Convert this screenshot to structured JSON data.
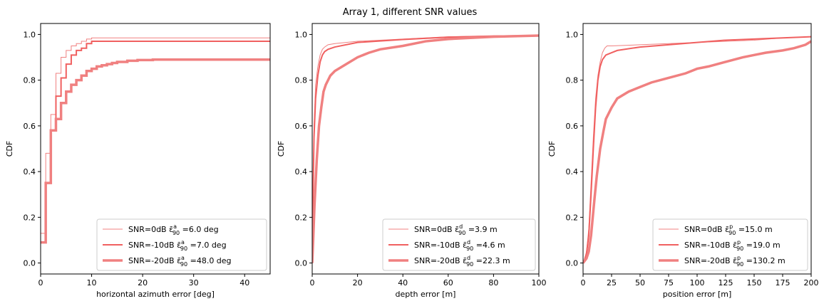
{
  "figure_title": "Array 1, different SNR values",
  "colors": {
    "line": "#f08080",
    "line_mid": "#f06060",
    "axis": "#000000"
  },
  "chart_data": [
    {
      "type": "line",
      "title": "",
      "xlabel": "horizontal azimuth error [deg]",
      "ylabel": "CDF",
      "xlim": [
        0,
        45
      ],
      "ylim": [
        0,
        1
      ],
      "xticks": [
        0,
        10,
        20,
        30,
        40
      ],
      "xtick_labels": [
        "0",
        "10",
        "20",
        "30",
        "40"
      ],
      "yticks": [
        0.0,
        0.2,
        0.4,
        0.6,
        0.8,
        1.0
      ],
      "ytick_labels": [
        "0.0",
        "0.2",
        "0.4",
        "0.6",
        "0.8",
        "1.0"
      ],
      "legend_position": "lower-right",
      "grid": false,
      "step": true,
      "series": [
        {
          "name": "SNR=0dB ε̄ₐ₉₀ =6.0 deg",
          "legend": {
            "pre": "SNR=0dB ",
            "sup": "a",
            "post": " =6.0 deg"
          },
          "width": 1,
          "x": [
            0,
            1,
            2,
            3,
            4,
            5,
            6,
            7,
            8,
            9,
            10,
            45
          ],
          "y": [
            0.13,
            0.48,
            0.65,
            0.83,
            0.9,
            0.93,
            0.95,
            0.96,
            0.97,
            0.98,
            0.985,
            0.985
          ]
        },
        {
          "name": "SNR=-10dB ε̄ₐ₉₀ =7.0 deg",
          "legend": {
            "pre": "SNR=-10dB ",
            "sup": "a",
            "post": " =7.0 deg"
          },
          "width": 2,
          "x": [
            0,
            1,
            2,
            3,
            4,
            5,
            6,
            7,
            8,
            9,
            10,
            45
          ],
          "y": [
            0.09,
            0.35,
            0.58,
            0.73,
            0.81,
            0.87,
            0.91,
            0.93,
            0.94,
            0.96,
            0.97,
            0.97
          ]
        },
        {
          "name": "SNR=-20dB ε̄ₐ₉₀ =48.0 deg",
          "legend": {
            "pre": "SNR=-20dB ",
            "sup": "a",
            "post": " =48.0 deg"
          },
          "width": 3.5,
          "x": [
            0,
            1,
            2,
            3,
            4,
            5,
            6,
            7,
            8,
            9,
            10,
            11,
            12,
            13,
            14,
            15,
            17,
            19,
            22,
            45
          ],
          "y": [
            0.09,
            0.35,
            0.58,
            0.63,
            0.7,
            0.75,
            0.78,
            0.8,
            0.82,
            0.84,
            0.85,
            0.86,
            0.865,
            0.87,
            0.875,
            0.88,
            0.885,
            0.888,
            0.89,
            0.895
          ]
        }
      ]
    },
    {
      "type": "line",
      "title": "",
      "xlabel": "depth error [m]",
      "ylabel": "CDF",
      "xlim": [
        0,
        100
      ],
      "ylim": [
        0,
        1
      ],
      "xticks": [
        0,
        20,
        40,
        60,
        80,
        100
      ],
      "xtick_labels": [
        "0",
        "20",
        "40",
        "60",
        "80",
        "100"
      ],
      "yticks": [
        0.0,
        0.2,
        0.4,
        0.6,
        0.8,
        1.0
      ],
      "ytick_labels": [
        "0.0",
        "0.2",
        "0.4",
        "0.6",
        "0.8",
        "1.0"
      ],
      "legend_position": "lower-right",
      "grid": false,
      "step": false,
      "series": [
        {
          "name": "SNR=0dB ε̄ₐ₉₀ =3.9 m",
          "legend": {
            "pre": "SNR=0dB ",
            "sup": "d",
            "post": " =3.9 m"
          },
          "width": 1,
          "x": [
            0,
            0.3,
            0.8,
            1.5,
            2.5,
            3.5,
            4.5,
            5.5,
            7,
            10,
            20,
            40,
            60,
            80,
            100
          ],
          "y": [
            0.0,
            0.3,
            0.6,
            0.78,
            0.86,
            0.91,
            0.935,
            0.945,
            0.955,
            0.96,
            0.97,
            0.98,
            0.99,
            0.993,
            0.995
          ]
        },
        {
          "name": "SNR=-10dB ε̄ₐ₉₀ =4.6 m",
          "legend": {
            "pre": "SNR=-10dB ",
            "sup": "d",
            "post": " =4.6 m"
          },
          "width": 2,
          "x": [
            0,
            0.3,
            0.8,
            1.5,
            2.5,
            3.5,
            4.5,
            5.5,
            7,
            10,
            20,
            40,
            60,
            80,
            100
          ],
          "y": [
            0.0,
            0.25,
            0.55,
            0.72,
            0.82,
            0.88,
            0.91,
            0.925,
            0.935,
            0.945,
            0.965,
            0.978,
            0.988,
            0.993,
            0.995
          ]
        },
        {
          "name": "SNR=-20dB ε̄ₐ₉₀ =22.3 m",
          "legend": {
            "pre": "SNR=-20dB ",
            "sup": "d",
            "post": " =22.3 m"
          },
          "width": 3.5,
          "x": [
            0,
            0.5,
            1,
            2,
            3,
            4,
            5,
            6,
            8,
            10,
            15,
            20,
            25,
            30,
            40,
            50,
            60,
            80,
            100
          ],
          "y": [
            0.0,
            0.12,
            0.25,
            0.45,
            0.6,
            0.68,
            0.75,
            0.78,
            0.82,
            0.84,
            0.87,
            0.9,
            0.92,
            0.935,
            0.95,
            0.97,
            0.98,
            0.99,
            0.995
          ]
        }
      ]
    },
    {
      "type": "line",
      "title": "",
      "xlabel": "position error [m]",
      "ylabel": "CDF",
      "xlim": [
        0,
        200
      ],
      "ylim": [
        0,
        1
      ],
      "xticks": [
        0,
        25,
        50,
        75,
        100,
        125,
        150,
        175,
        200
      ],
      "xtick_labels": [
        "0",
        "25",
        "50",
        "75",
        "100",
        "125",
        "150",
        "175",
        "200"
      ],
      "yticks": [
        0.0,
        0.2,
        0.4,
        0.6,
        0.8,
        1.0
      ],
      "ytick_labels": [
        "0.0",
        "0.2",
        "0.4",
        "0.6",
        "0.8",
        "1.0"
      ],
      "legend_position": "lower-right",
      "grid": false,
      "step": false,
      "series": [
        {
          "name": "SNR=0dB ε̄ₚ₉₀ =15.0 m",
          "legend": {
            "pre": "SNR=0dB ",
            "sup": "p",
            "post": " =15.0 m"
          },
          "width": 1,
          "x": [
            0,
            1,
            3,
            5,
            7,
            9,
            11,
            13,
            15,
            17,
            19,
            21,
            25,
            50,
            75,
            100,
            125,
            150,
            175,
            200
          ],
          "y": [
            0.0,
            0.01,
            0.05,
            0.15,
            0.35,
            0.55,
            0.72,
            0.82,
            0.88,
            0.92,
            0.94,
            0.95,
            0.95,
            0.955,
            0.96,
            0.965,
            0.97,
            0.975,
            0.985,
            0.99
          ]
        },
        {
          "name": "SNR=-10dB ε̄ₚ₉₀ =19.0 m",
          "legend": {
            "pre": "SNR=-10dB ",
            "sup": "p",
            "post": " =19.0 m"
          },
          "width": 2,
          "x": [
            0,
            1,
            3,
            5,
            7,
            9,
            11,
            13,
            15,
            17,
            20,
            25,
            30,
            50,
            75,
            100,
            125,
            150,
            175,
            200
          ],
          "y": [
            0.0,
            0.01,
            0.04,
            0.12,
            0.3,
            0.5,
            0.68,
            0.8,
            0.86,
            0.89,
            0.91,
            0.92,
            0.93,
            0.945,
            0.955,
            0.965,
            0.975,
            0.98,
            0.985,
            0.99
          ]
        },
        {
          "name": "SNR=-20dB ε̄ₚ₉₀ =130.2 m",
          "legend": {
            "pre": "SNR=-20dB ",
            "sup": "p",
            "post": " =130.2 m"
          },
          "width": 3.5,
          "x": [
            0,
            3,
            5,
            7,
            10,
            12,
            15,
            18,
            20,
            25,
            30,
            40,
            50,
            60,
            75,
            90,
            100,
            110,
            125,
            140,
            150,
            160,
            175,
            185,
            195,
            200
          ],
          "y": [
            0.0,
            0.02,
            0.05,
            0.12,
            0.28,
            0.38,
            0.5,
            0.58,
            0.63,
            0.68,
            0.72,
            0.75,
            0.77,
            0.79,
            0.81,
            0.83,
            0.85,
            0.86,
            0.88,
            0.9,
            0.91,
            0.92,
            0.93,
            0.94,
            0.955,
            0.97
          ]
        }
      ]
    }
  ]
}
